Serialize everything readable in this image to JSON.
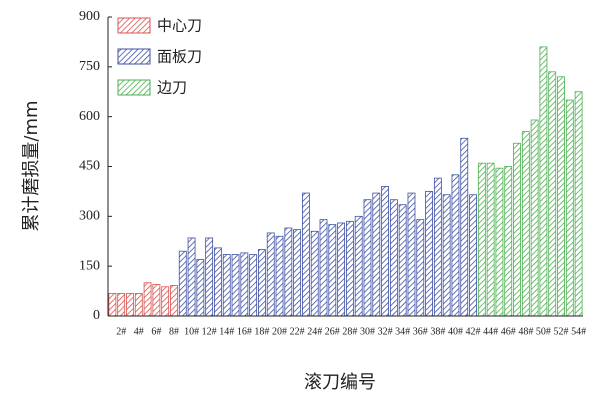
{
  "chart_data": {
    "type": "bar",
    "x_label": "滚刀编号",
    "y_label": "累计磨损量/mm",
    "categories": [
      null,
      "2#",
      null,
      "4#",
      null,
      "6#",
      null,
      "8#",
      null,
      "10#",
      null,
      "12#",
      null,
      "14#",
      null,
      "16#",
      null,
      "18#",
      null,
      "20#",
      null,
      "22#",
      null,
      "24#",
      null,
      "26#",
      null,
      "28#",
      null,
      "30#",
      null,
      "32#",
      null,
      "34#",
      null,
      "36#",
      null,
      "38#",
      null,
      "40#",
      null,
      "42#",
      null,
      "44#",
      null,
      "46#",
      null,
      "48#",
      null,
      "50#",
      null,
      "52#",
      null,
      "54#"
    ],
    "series": [
      {
        "name": "中心刀",
        "color": "#d9534f",
        "values": [
          68,
          68,
          68,
          68,
          100,
          95,
          88,
          92,
          null,
          null,
          null,
          null,
          null,
          null,
          null,
          null,
          null,
          null,
          null,
          null,
          null,
          null,
          null,
          null,
          null,
          null,
          null,
          null,
          null,
          null,
          null,
          null,
          null,
          null,
          null,
          null,
          null,
          null,
          null,
          null,
          null,
          null,
          null,
          null,
          null,
          null,
          null,
          null,
          null,
          null,
          null,
          null,
          null,
          null
        ]
      },
      {
        "name": "面板刀",
        "color": "#3f51a5",
        "values": [
          null,
          null,
          null,
          null,
          null,
          null,
          null,
          null,
          195,
          235,
          170,
          235,
          205,
          185,
          185,
          190,
          185,
          200,
          250,
          240,
          265,
          260,
          370,
          255,
          290,
          275,
          280,
          285,
          300,
          350,
          370,
          390,
          350,
          335,
          370,
          290,
          375,
          415,
          365,
          425,
          535,
          365,
          null,
          null,
          null,
          null,
          null,
          null,
          null,
          null,
          null,
          null,
          null,
          null
        ]
      },
      {
        "name": "边刀",
        "color": "#4caf50",
        "values": [
          null,
          null,
          null,
          null,
          null,
          null,
          null,
          null,
          null,
          null,
          null,
          null,
          null,
          null,
          null,
          null,
          null,
          null,
          null,
          null,
          null,
          null,
          null,
          null,
          null,
          null,
          null,
          null,
          null,
          null,
          null,
          null,
          null,
          null,
          null,
          null,
          null,
          null,
          null,
          null,
          null,
          null,
          460,
          460,
          445,
          450,
          520,
          555,
          590,
          810,
          735,
          720,
          650,
          675
        ]
      }
    ],
    "ylim": [
      0,
      900
    ],
    "yticks": [
      0,
      150,
      300,
      450,
      600,
      750,
      900
    ]
  }
}
